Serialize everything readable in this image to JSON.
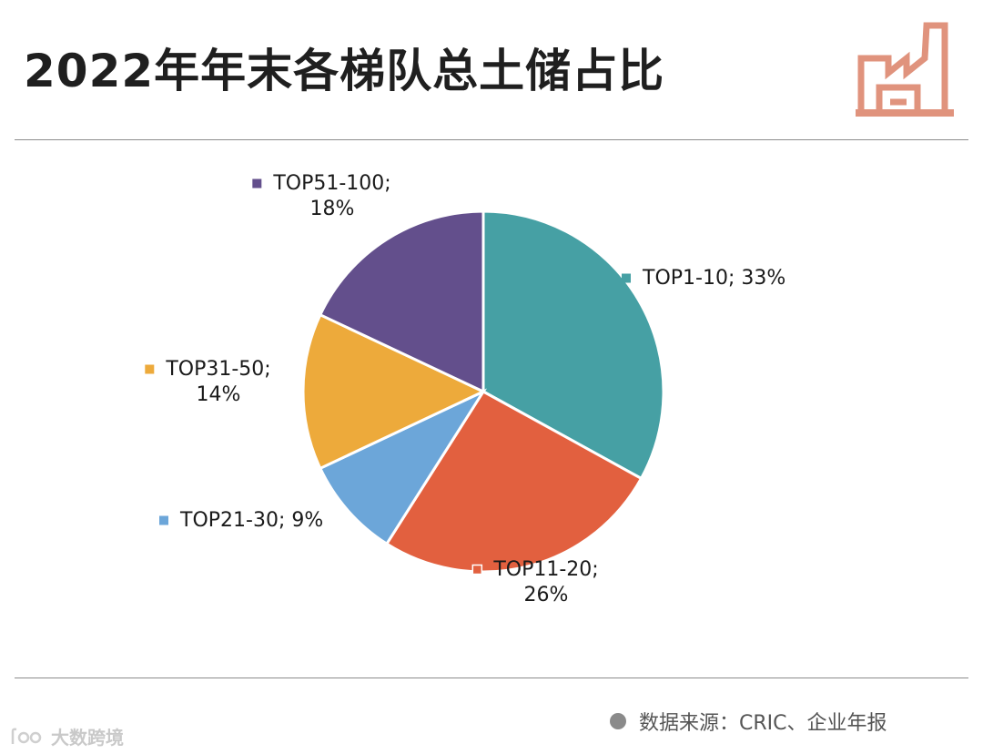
{
  "header": {
    "title": "2022年年末各梯队总土储占比"
  },
  "colors": {
    "accent_icon": "#e0937d",
    "rule": "#8c8c8c"
  },
  "chart_data": {
    "type": "pie",
    "title": "2022年年末各梯队总土储占比",
    "unit": "%",
    "slices": [
      {
        "name": "TOP1-10",
        "value": 33,
        "label_line1": "TOP1-10; 33%",
        "label_line2": "",
        "color": "#46a0a4"
      },
      {
        "name": "TOP11-20",
        "value": 26,
        "label_line1": "TOP11-20;",
        "label_line2": "26%",
        "color": "#e2603f"
      },
      {
        "name": "TOP21-30",
        "value": 9,
        "label_line1": "TOP21-30; 9%",
        "label_line2": "",
        "color": "#6ca6d9"
      },
      {
        "name": "TOP31-50",
        "value": 14,
        "label_line1": "TOP31-50;",
        "label_line2": "14%",
        "color": "#edaa3b"
      },
      {
        "name": "TOP51-100",
        "value": 18,
        "label_line1": "TOP51-100;",
        "label_line2": "18%",
        "color": "#634f8c"
      }
    ]
  },
  "footer": {
    "source": "数据来源：CRIC、企业年报",
    "watermark": "大数跨境"
  }
}
